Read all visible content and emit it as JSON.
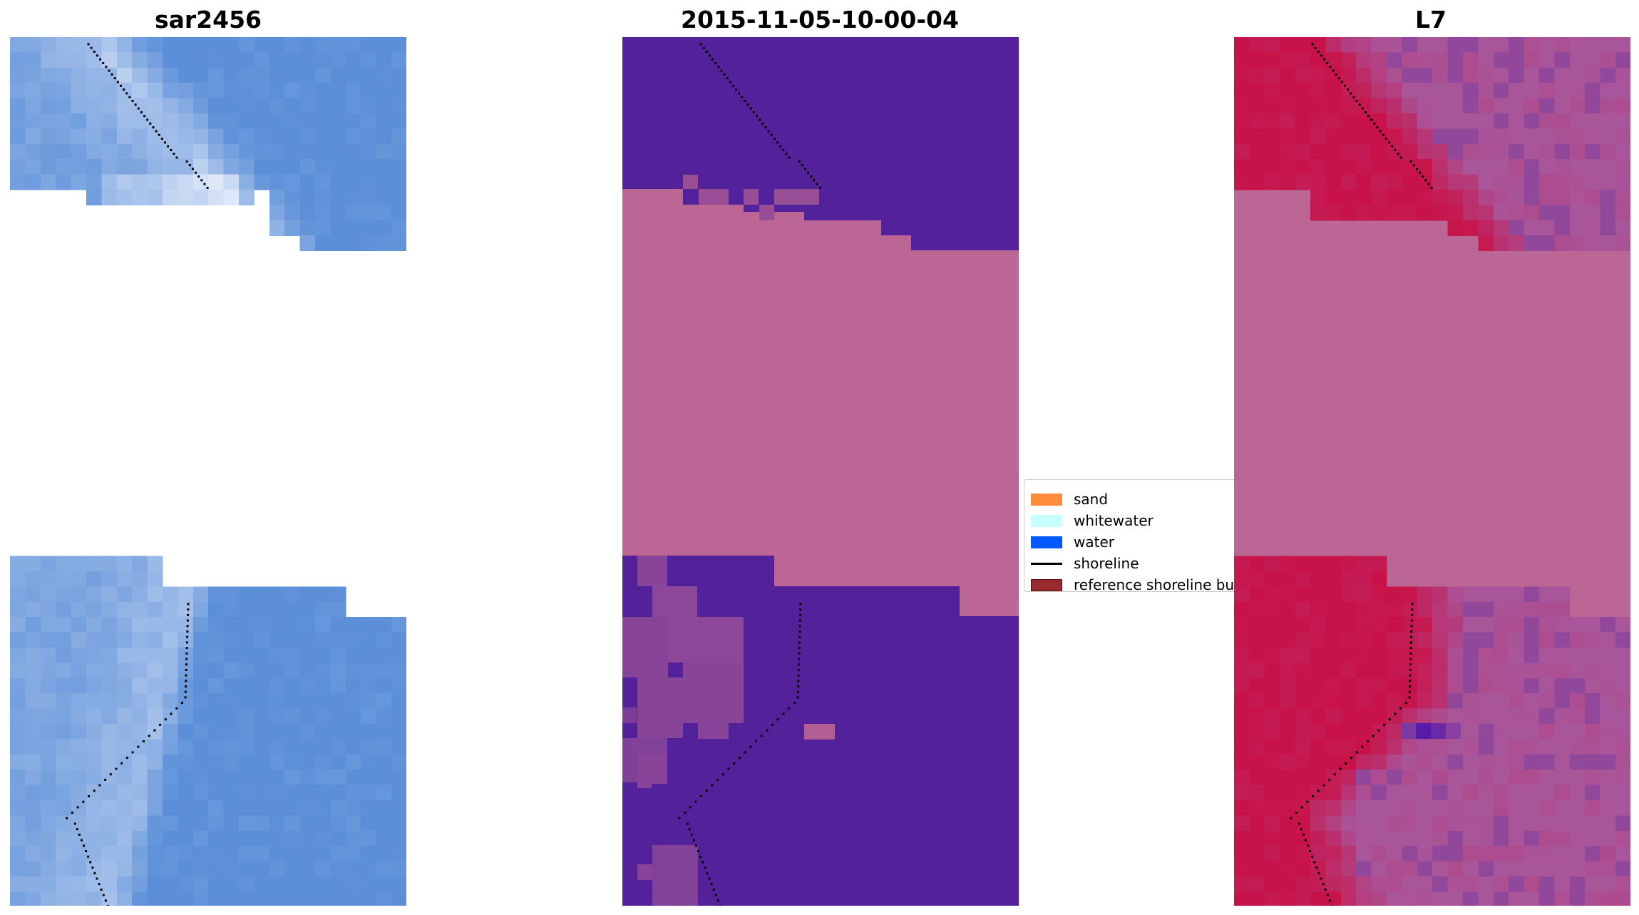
{
  "panels": [
    {
      "title": "sar2456",
      "kind": "rgb-image"
    },
    {
      "title": "2015-11-05-10-00-04",
      "kind": "classified-image"
    },
    {
      "title": "L7",
      "kind": "mndwi-image"
    }
  ],
  "legend": {
    "items": [
      {
        "label": "sand",
        "color": "#ff8c3c",
        "kind": "patch"
      },
      {
        "label": "whitewater",
        "color": "#c8ffff",
        "kind": "patch"
      },
      {
        "label": "water",
        "color": "#005aff",
        "kind": "patch"
      },
      {
        "label": "shoreline",
        "color": "#000000",
        "kind": "line"
      },
      {
        "label": "reference shoreline buffer",
        "color": "#9b2a2f",
        "kind": "patch"
      }
    ]
  },
  "colors": {
    "cloud_mask": "#bc6696",
    "classified_background": "#53229a",
    "rgb_water": "#5b8fd8",
    "rgb_whitewater": "#dfe8f8",
    "ndwi_land": "#c8134a",
    "ndwi_water": "#a9559a"
  }
}
